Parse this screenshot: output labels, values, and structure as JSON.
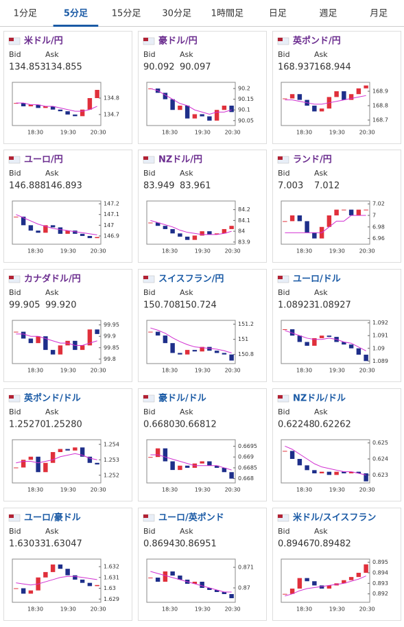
{
  "tabs": [
    "1分足",
    "5分足",
    "15分足",
    "30分足",
    "1時間足",
    "日足",
    "週足",
    "月足"
  ],
  "selected_tab": 1,
  "cards": [
    {
      "name": "米ドル/円",
      "visited": true,
      "bid_label": "Bid",
      "ask_label": "Ask",
      "bid": "134.853",
      "ask": "134.855",
      "chart": {
        "type": "candlestick",
        "ylim": [
          134.633,
          134.896
        ],
        "yticks": [
          134.8,
          134.7
        ],
        "xlabels": [
          "18:30",
          "19:30",
          "20:30"
        ],
        "close": [
          134.77,
          134.75,
          134.76,
          134.74,
          134.75,
          134.73,
          134.72,
          134.7,
          134.69,
          134.73,
          134.8,
          134.85
        ],
        "ma": [
          134.77,
          134.77,
          134.76,
          134.76,
          134.75,
          134.75,
          134.74,
          134.73,
          134.72,
          134.72,
          134.73,
          134.75
        ]
      }
    },
    {
      "name": "豪ドル/円",
      "visited": true,
      "bid_label": "Bid",
      "ask_label": "Ask",
      "bid": "90.092",
      "ask": "90.097",
      "chart": {
        "type": "candlestick",
        "ylim": [
          90.027,
          90.229
        ],
        "yticks": [
          90.2,
          90.15,
          90.1,
          90.05
        ],
        "xlabels": [
          "18:30",
          "19:30",
          "20:30"
        ],
        "close": [
          90.2,
          90.18,
          90.15,
          90.1,
          90.12,
          90.06,
          90.08,
          90.07,
          90.05,
          90.1,
          90.12,
          90.09
        ],
        "ma": [
          90.2,
          90.19,
          90.17,
          90.15,
          90.13,
          90.12,
          90.1,
          90.09,
          90.08,
          90.09,
          90.09,
          90.1
        ]
      }
    },
    {
      "name": "英ポンド/円",
      "visited": true,
      "bid_label": "Bid",
      "ask_label": "Ask",
      "bid": "168.937",
      "ask": "168.944",
      "chart": {
        "type": "candlestick",
        "ylim": [
          168.662,
          168.962
        ],
        "yticks": [
          168.9,
          168.8,
          168.7
        ],
        "xlabels": [
          "18:30",
          "19:30",
          "20:30"
        ],
        "close": [
          168.85,
          168.88,
          168.84,
          168.8,
          168.76,
          168.78,
          168.86,
          168.9,
          168.84,
          168.88,
          168.92,
          168.94
        ],
        "ma": [
          168.84,
          168.84,
          168.83,
          168.82,
          168.81,
          168.81,
          168.82,
          168.83,
          168.84,
          168.85,
          168.86,
          168.87
        ]
      }
    },
    {
      "name": "ユーロ/円",
      "visited": true,
      "bid_label": "Bid",
      "ask_label": "Ask",
      "bid": "146.888",
      "ask": "146.893",
      "chart": {
        "type": "candlestick",
        "ylim": [
          146.823,
          147.226
        ],
        "yticks": [
          147.2,
          147.1,
          147,
          146.9
        ],
        "xlabels": [
          "18:30",
          "19:30",
          "20:30"
        ],
        "close": [
          147.08,
          147.0,
          146.95,
          146.93,
          147.0,
          146.98,
          146.92,
          146.95,
          146.92,
          146.9,
          146.88,
          146.89
        ],
        "ma": [
          147.1,
          147.07,
          147.04,
          147.01,
          146.99,
          146.97,
          146.96,
          146.95,
          146.94,
          146.93,
          146.92,
          146.91
        ]
      }
    },
    {
      "name": "NZドル/円",
      "visited": true,
      "bid_label": "Bid",
      "ask_label": "Ask",
      "bid": "83.949",
      "ask": "83.961",
      "chart": {
        "type": "candlestick",
        "ylim": [
          83.88,
          84.28
        ],
        "yticks": [
          84.2,
          84.1,
          84,
          83.9
        ],
        "xlabels": [
          "18:30",
          "19:30",
          "20:30"
        ],
        "close": [
          84.08,
          84.05,
          84.02,
          83.98,
          83.95,
          83.92,
          83.96,
          84.0,
          83.97,
          83.98,
          84.02,
          84.05
        ],
        "ma": [
          84.1,
          84.08,
          84.06,
          84.04,
          84.01,
          83.99,
          83.98,
          83.97,
          83.97,
          83.97,
          83.98,
          84.0
        ]
      }
    },
    {
      "name": "ランド/円",
      "visited": true,
      "bid_label": "Bid",
      "ask_label": "Ask",
      "bid": "7.003",
      "ask": "7.012",
      "chart": {
        "type": "candlestick",
        "ylim": [
          6.95,
          7.025
        ],
        "yticks": [
          7.02,
          7,
          6.98,
          6.96
        ],
        "xlabels": [
          "18:30",
          "19:30",
          "20:30"
        ],
        "close": [
          6.99,
          7.0,
          6.99,
          6.97,
          6.96,
          6.98,
          7.0,
          7.01,
          7.01,
          7.0,
          7.01,
          7.01
        ],
        "ma": [
          6.97,
          6.97,
          6.97,
          6.97,
          6.97,
          6.97,
          6.98,
          6.99,
          6.99,
          7.0,
          7.0,
          7.0
        ]
      }
    },
    {
      "name": "カナダドル/円",
      "visited": true,
      "bid_label": "Bid",
      "ask_label": "Ask",
      "bid": "99.905",
      "ask": "99.920",
      "chart": {
        "type": "candlestick",
        "ylim": [
          99.78,
          99.97
        ],
        "yticks": [
          99.95,
          99.9,
          99.85,
          99.8
        ],
        "xlabels": [
          "18:30",
          "19:30",
          "20:30"
        ],
        "close": [
          99.92,
          99.89,
          99.87,
          99.9,
          99.84,
          99.82,
          99.86,
          99.88,
          99.84,
          99.86,
          99.93,
          99.91
        ],
        "ma": [
          99.91,
          99.91,
          99.9,
          99.9,
          99.89,
          99.88,
          99.87,
          99.87,
          99.86,
          99.86,
          99.87,
          99.88
        ]
      }
    },
    {
      "name": "スイスフラン/円",
      "visited": false,
      "bid_label": "Bid",
      "ask_label": "Ask",
      "bid": "150.708",
      "ask": "150.724",
      "chart": {
        "type": "candlestick",
        "ylim": [
          150.68,
          151.25
        ],
        "yticks": [
          151.2,
          151,
          150.8
        ],
        "xlabels": [
          "18:30",
          "19:30",
          "20:30"
        ],
        "close": [
          151.1,
          151.05,
          150.95,
          150.82,
          150.8,
          150.86,
          150.84,
          150.9,
          150.85,
          150.82,
          150.8,
          150.72
        ],
        "ma": [
          151.15,
          151.12,
          151.08,
          151.02,
          150.97,
          150.93,
          150.9,
          150.89,
          150.88,
          150.87,
          150.85,
          150.82
        ]
      }
    },
    {
      "name": "ユーロ/ドル",
      "visited": false,
      "bid_label": "Bid",
      "ask_label": "Ask",
      "bid": "1.08923",
      "ask": "1.08927",
      "chart": {
        "type": "candlestick",
        "ylim": [
          1.0888,
          1.0922
        ],
        "yticks": [
          1.092,
          1.091,
          1.09,
          1.089
        ],
        "xlabels": [
          "18:30",
          "19:30",
          "20:30"
        ],
        "close": [
          1.0915,
          1.091,
          1.0905,
          1.0902,
          1.0908,
          1.091,
          1.0909,
          1.0905,
          1.0903,
          1.09,
          1.0895,
          1.089
        ],
        "ma": [
          1.0914,
          1.0912,
          1.091,
          1.0908,
          1.0907,
          1.0907,
          1.0908,
          1.0907,
          1.0905,
          1.0904,
          1.0901,
          1.0898
        ]
      }
    },
    {
      "name": "英ポンド/ドル",
      "visited": false,
      "bid_label": "Bid",
      "ask_label": "Ask",
      "bid": "1.25270",
      "ask": "1.25280",
      "chart": {
        "type": "candlestick",
        "ylim": [
          1.2515,
          1.2543
        ],
        "yticks": [
          1.254,
          1.253,
          1.252
        ],
        "xlabels": [
          "18:30",
          "19:30",
          "20:30"
        ],
        "close": [
          1.2525,
          1.253,
          1.2532,
          1.2522,
          1.2528,
          1.2535,
          1.2537,
          1.2536,
          1.2538,
          1.2532,
          1.2528,
          1.2527
        ],
        "ma": [
          1.2528,
          1.2529,
          1.2529,
          1.2528,
          1.2529,
          1.253,
          1.2532,
          1.2533,
          1.2534,
          1.2533,
          1.2531,
          1.253
        ]
      }
    },
    {
      "name": "豪ドル/ドル",
      "visited": false,
      "bid_label": "Bid",
      "ask_label": "Ask",
      "bid": "0.66803",
      "ask": "0.66812",
      "chart": {
        "type": "candlestick",
        "ylim": [
          0.6678,
          0.6698
        ],
        "yticks": [
          0.6695,
          0.669,
          0.6685,
          0.668
        ],
        "xlabels": [
          "18:30",
          "19:30",
          "20:30"
        ],
        "close": [
          0.669,
          0.6694,
          0.6688,
          0.6684,
          0.6686,
          0.6685,
          0.6687,
          0.6688,
          0.6686,
          0.6685,
          0.6683,
          0.668
        ],
        "ma": [
          0.6691,
          0.6691,
          0.669,
          0.6689,
          0.6688,
          0.6687,
          0.6686,
          0.6686,
          0.6686,
          0.6686,
          0.6685,
          0.6684
        ]
      }
    },
    {
      "name": "NZドル/ドル",
      "visited": false,
      "bid_label": "Bid",
      "ask_label": "Ask",
      "bid": "0.62248",
      "ask": "0.62262",
      "chart": {
        "type": "candlestick",
        "ylim": [
          0.6225,
          0.6252
        ],
        "yticks": [
          0.625,
          0.624,
          0.623
        ],
        "xlabels": [
          "18:30",
          "19:30",
          "20:30"
        ],
        "close": [
          0.6245,
          0.624,
          0.6236,
          0.6233,
          0.6231,
          0.6232,
          0.623,
          0.6232,
          0.6231,
          0.6232,
          0.6231,
          0.6226
        ],
        "ma": [
          0.6248,
          0.6246,
          0.6243,
          0.624,
          0.6237,
          0.6235,
          0.6234,
          0.6233,
          0.6232,
          0.6232,
          0.6231,
          0.623
        ]
      }
    },
    {
      "name": "ユーロ/豪ドル",
      "visited": false,
      "bid_label": "Bid",
      "ask_label": "Ask",
      "bid": "1.63033",
      "ask": "1.63047",
      "chart": {
        "type": "candlestick",
        "ylim": [
          1.6287,
          1.6327
        ],
        "yticks": [
          1.632,
          1.631,
          1.63,
          1.629
        ],
        "xlabels": [
          "18:30",
          "19:30",
          "20:30"
        ],
        "close": [
          1.63,
          1.6295,
          1.6298,
          1.631,
          1.6315,
          1.6322,
          1.6318,
          1.6312,
          1.6308,
          1.6305,
          1.6302,
          1.6303
        ],
        "ma": [
          1.6305,
          1.6304,
          1.6303,
          1.6304,
          1.6306,
          1.6308,
          1.631,
          1.6311,
          1.6311,
          1.631,
          1.6309,
          1.6308
        ]
      }
    },
    {
      "name": "ユーロ/英ポンド",
      "visited": false,
      "bid_label": "Bid",
      "ask_label": "Ask",
      "bid": "0.86943",
      "ask": "0.86951",
      "chart": {
        "type": "candlestick",
        "ylim": [
          0.8693,
          0.8714
        ],
        "yticks": [
          0.871,
          0.87
        ],
        "xlabels": [
          "18:30",
          "19:30",
          "20:30"
        ],
        "close": [
          0.8705,
          0.8703,
          0.8708,
          0.8706,
          0.8704,
          0.8702,
          0.8703,
          0.87,
          0.8699,
          0.8698,
          0.8697,
          0.8695
        ],
        "ma": [
          0.8708,
          0.8707,
          0.8706,
          0.8705,
          0.8704,
          0.8703,
          0.8702,
          0.8701,
          0.87,
          0.8699,
          0.8698,
          0.8698
        ]
      }
    },
    {
      "name": "米ドル/スイスフラン",
      "visited": false,
      "bid_label": "Bid",
      "ask_label": "Ask",
      "bid": "0.89467",
      "ask": "0.89482",
      "chart": {
        "type": "candlestick",
        "ylim": [
          0.8912,
          0.8953
        ],
        "yticks": [
          0.895,
          0.894,
          0.893,
          0.892
        ],
        "xlabels": [
          "18:30",
          "19:30",
          "20:30"
        ],
        "close": [
          0.892,
          0.8925,
          0.8935,
          0.8932,
          0.8928,
          0.8925,
          0.8928,
          0.893,
          0.8933,
          0.8936,
          0.894,
          0.8948
        ],
        "ma": [
          0.8918,
          0.892,
          0.8923,
          0.8925,
          0.8926,
          0.8927,
          0.8928,
          0.8929,
          0.893,
          0.8932,
          0.8934,
          0.8937
        ]
      }
    }
  ]
}
